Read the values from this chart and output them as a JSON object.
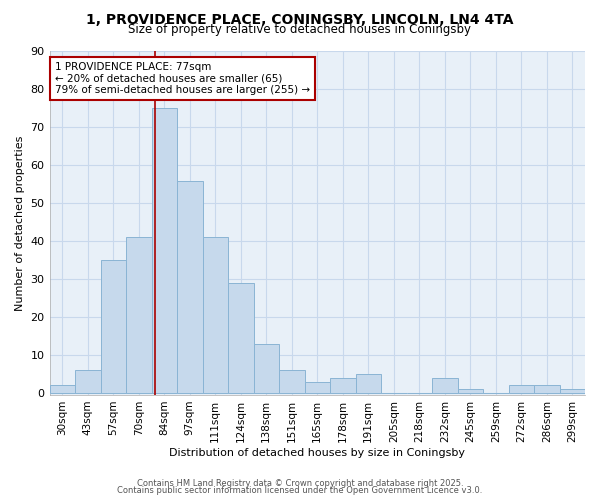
{
  "title_line1": "1, PROVIDENCE PLACE, CONINGSBY, LINCOLN, LN4 4TA",
  "title_line2": "Size of property relative to detached houses in Coningsby",
  "xlabel": "Distribution of detached houses by size in Coningsby",
  "ylabel": "Number of detached properties",
  "categories": [
    "30sqm",
    "43sqm",
    "57sqm",
    "70sqm",
    "84sqm",
    "97sqm",
    "111sqm",
    "124sqm",
    "138sqm",
    "151sqm",
    "165sqm",
    "178sqm",
    "191sqm",
    "205sqm",
    "218sqm",
    "232sqm",
    "245sqm",
    "259sqm",
    "272sqm",
    "286sqm",
    "299sqm"
  ],
  "values": [
    2,
    6,
    35,
    41,
    75,
    56,
    41,
    29,
    13,
    6,
    3,
    4,
    5,
    0,
    0,
    4,
    1,
    0,
    2,
    2,
    1
  ],
  "bar_color": "#c6d9ec",
  "bar_edge_color": "#8ab4d4",
  "annotation_line1": "1 PROVIDENCE PLACE: 77sqm",
  "annotation_line2": "← 20% of detached houses are smaller (65)",
  "annotation_line3": "79% of semi-detached houses are larger (255) →",
  "annotation_box_color": "#ffffff",
  "annotation_box_edge": "#aa0000",
  "vline_color": "#aa0000",
  "vline_x_category_index": 3.62,
  "ylim": [
    0,
    90
  ],
  "yticks": [
    0,
    10,
    20,
    30,
    40,
    50,
    60,
    70,
    80,
    90
  ],
  "grid_color": "#c8d8ec",
  "background_color": "#ffffff",
  "plot_bg_color": "#e8f0f8",
  "footer_line1": "Contains HM Land Registry data © Crown copyright and database right 2025.",
  "footer_line2": "Contains public sector information licensed under the Open Government Licence v3.0."
}
